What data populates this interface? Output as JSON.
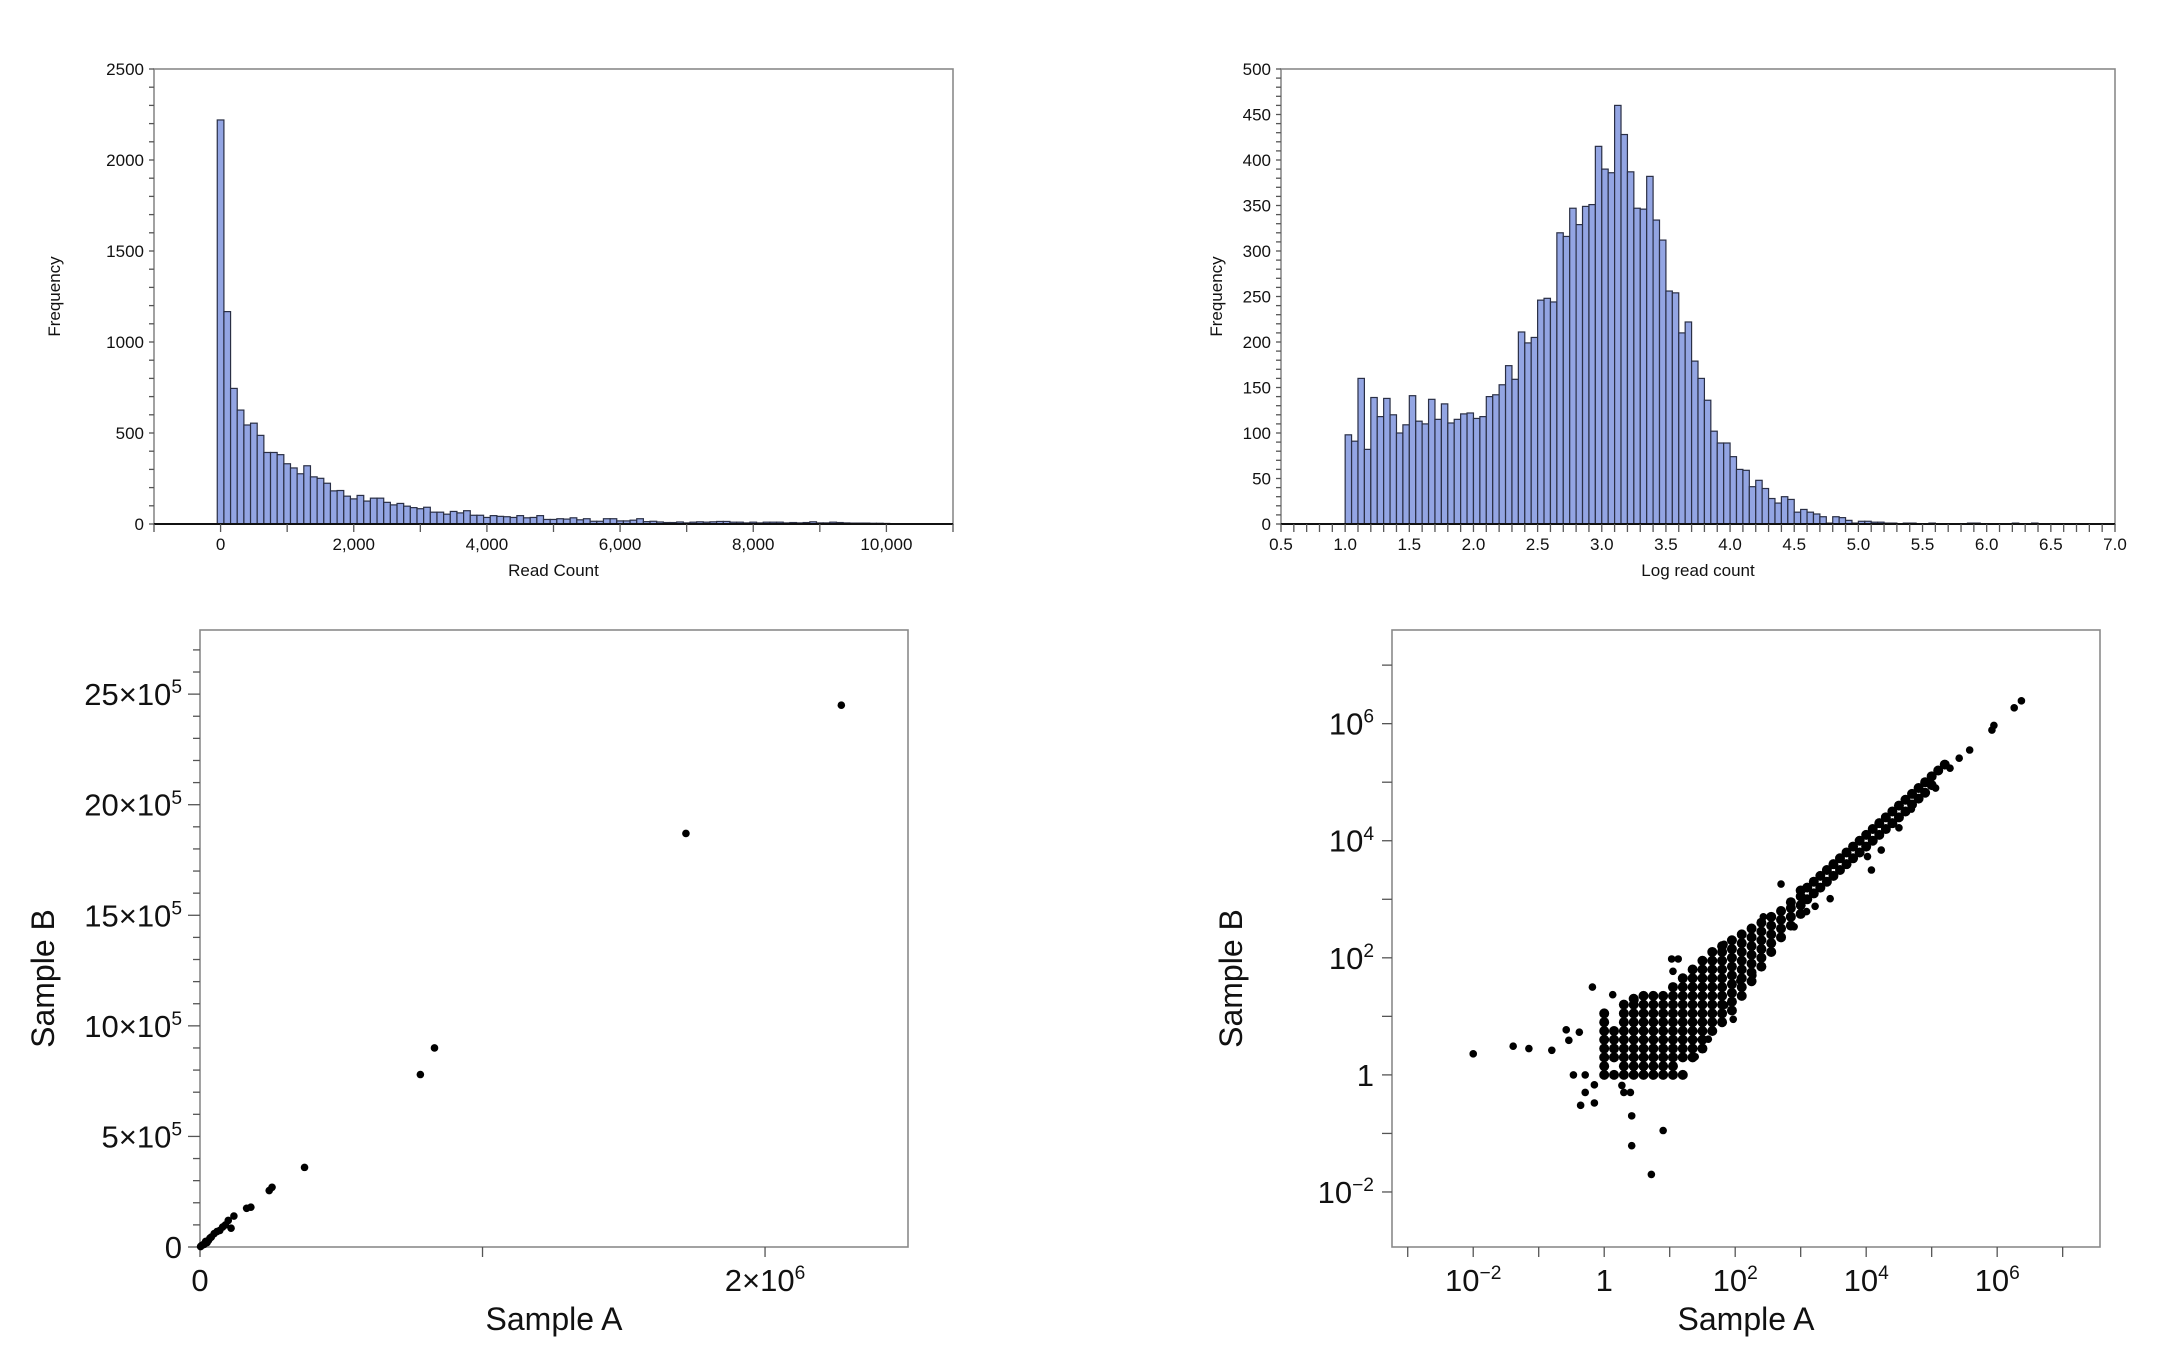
{
  "chart_data": [
    {
      "type": "bar",
      "subtype": "histogram",
      "xlabel": "Read Count",
      "ylabel": "Frequency",
      "xlim": [
        -1000,
        11000
      ],
      "ylim": [
        0,
        2500
      ],
      "bin_start": -50,
      "bin_width": 100,
      "values": [
        2220,
        1167,
        745,
        626,
        544,
        554,
        487,
        393,
        393,
        381,
        331,
        308,
        276,
        320,
        259,
        251,
        224,
        182,
        184,
        153,
        138,
        157,
        126,
        142,
        142,
        119,
        105,
        113,
        98,
        90,
        84,
        92,
        65,
        65,
        54,
        69,
        61,
        73,
        48,
        48,
        36,
        46,
        42,
        40,
        36,
        46,
        34,
        36,
        46,
        25,
        25,
        29,
        27,
        34,
        23,
        29,
        15,
        15,
        29,
        29,
        17,
        17,
        21,
        29,
        13,
        15,
        11,
        8,
        8,
        11,
        6,
        10,
        12,
        10,
        12,
        14,
        14,
        10,
        10,
        6,
        10,
        6,
        10,
        10,
        10,
        6,
        8,
        6,
        8,
        12,
        6,
        6,
        10,
        8,
        6,
        5,
        5,
        5,
        4,
        4,
        3
      ],
      "x_ticks": {
        "values": [
          0,
          2000,
          4000,
          6000,
          8000,
          10000
        ],
        "labels": [
          "0",
          "2,000",
          "4,000",
          "6,000",
          "8,000",
          "10,000"
        ],
        "minor_step": 1000
      },
      "y_ticks": {
        "values": [
          0,
          500,
          1000,
          1500,
          2000,
          2500
        ],
        "labels": [
          "0",
          "500",
          "1000",
          "1500",
          "2000",
          "2500"
        ],
        "minor_step": 100
      },
      "fill": "#93a5e3",
      "grid": false
    },
    {
      "type": "bar",
      "subtype": "histogram",
      "xlabel": "Log read count",
      "ylabel": "Frequency",
      "xlim": [
        0.5,
        7.0
      ],
      "ylim": [
        0,
        500
      ],
      "bin_start": 1.0,
      "bin_width": 0.05,
      "values": [
        98,
        91,
        160,
        82,
        139,
        118,
        138,
        120,
        100,
        109,
        141,
        113,
        110,
        137,
        115,
        132,
        111,
        115,
        121,
        122,
        116,
        118,
        140,
        142,
        153,
        174,
        159,
        211,
        199,
        205,
        246,
        248,
        244,
        320,
        316,
        347,
        329,
        349,
        351,
        415,
        390,
        386,
        460,
        428,
        387,
        347,
        346,
        382,
        334,
        312,
        256,
        254,
        210,
        222,
        179,
        160,
        136,
        102,
        89,
        89,
        74,
        60,
        59,
        41,
        48,
        39,
        28,
        23,
        30,
        27,
        13,
        16,
        13,
        11,
        8,
        1,
        8,
        7,
        4,
        1,
        3,
        3,
        2,
        2,
        1,
        1,
        0,
        1,
        1,
        0,
        0,
        1,
        0,
        0,
        0,
        0,
        0,
        1,
        1,
        0,
        0,
        0,
        0,
        0,
        1,
        0,
        0,
        1
      ],
      "x_ticks": {
        "values": [
          0.5,
          1.0,
          1.5,
          2.0,
          2.5,
          3.0,
          3.5,
          4.0,
          4.5,
          5.0,
          5.5,
          6.0,
          6.5,
          7.0
        ],
        "labels": [
          "0.5",
          "1.0",
          "1.5",
          "2.0",
          "2.5",
          "3.0",
          "3.5",
          "4.0",
          "4.5",
          "5.0",
          "5.5",
          "6.0",
          "6.5",
          "7.0"
        ],
        "minor_step": 0.1
      },
      "y_ticks": {
        "values": [
          0,
          50,
          100,
          150,
          200,
          250,
          300,
          350,
          400,
          450,
          500
        ],
        "labels": [
          "0",
          "50",
          "100",
          "150",
          "200",
          "250",
          "300",
          "350",
          "400",
          "450",
          "500"
        ],
        "minor_step": 10
      },
      "fill": "#93a5e3",
      "grid": false
    },
    {
      "type": "scatter",
      "xlabel": "Sample A",
      "ylabel": "Sample B",
      "xscale": "linear",
      "yscale": "linear",
      "xlim": [
        0,
        2506000
      ],
      "ylim": [
        0,
        2790000
      ],
      "points": [
        [
          2270000,
          2450000
        ],
        [
          1720000,
          1870000
        ],
        [
          830000,
          900000
        ],
        [
          780000,
          780000
        ],
        [
          370000,
          360000
        ],
        [
          255000,
          270000
        ],
        [
          245000,
          255000
        ],
        [
          180000,
          180000
        ],
        [
          165000,
          175000
        ],
        [
          120000,
          140000
        ],
        [
          110000,
          85000
        ],
        [
          100000,
          120000
        ],
        [
          90000,
          100000
        ],
        [
          80000,
          90000
        ],
        [
          70000,
          75000
        ],
        [
          60000,
          70000
        ],
        [
          50000,
          60000
        ],
        [
          40000,
          45000
        ],
        [
          35000,
          40000
        ],
        [
          30000,
          30000
        ],
        [
          25000,
          20000
        ],
        [
          20000,
          25000
        ],
        [
          15000,
          12000
        ],
        [
          10000,
          10000
        ],
        [
          5000,
          6000
        ],
        [
          2000,
          2000
        ]
      ],
      "x_ticks": {
        "values": [
          0,
          1000000,
          2000000
        ],
        "labels": [
          {
            "base": "0",
            "exp": ""
          },
          {
            "base": "",
            "exp": ""
          },
          {
            "base": "2×10",
            "exp": "6"
          }
        ]
      },
      "y_ticks": {
        "values": [
          0,
          500000,
          1000000,
          1500000,
          2000000,
          2500000
        ],
        "labels": [
          {
            "base": "0",
            "exp": ""
          },
          {
            "base": "5×10",
            "exp": "5"
          },
          {
            "base": "10×10",
            "exp": "5"
          },
          {
            "base": "15×10",
            "exp": "5"
          },
          {
            "base": "20×10",
            "exp": "5"
          },
          {
            "base": "25×10",
            "exp": "5"
          }
        ],
        "minor_step": 100000
      },
      "grid": false
    },
    {
      "type": "scatter",
      "xlabel": "Sample A",
      "ylabel": "Sample B",
      "xscale": "log10",
      "yscale": "log10",
      "log10_xlim": [
        -3.24,
        7.57
      ],
      "log10_ylim": [
        -2.94,
        7.6
      ],
      "log10_point_columns": [
        {
          "x": 0.0,
          "y": [
            0,
            0.15,
            0.3,
            0.45,
            0.6,
            0.75,
            0.9,
            1.05
          ]
        },
        {
          "x": 0.15,
          "y": [
            0,
            0.3,
            0.45,
            0.6,
            0.75
          ]
        },
        {
          "x": 0.3,
          "y": [
            0,
            0.15,
            0.3,
            0.45,
            0.6,
            0.75,
            0.9,
            1.05,
            1.2
          ]
        },
        {
          "x": 0.45,
          "y": [
            0,
            0.15,
            0.3,
            0.45,
            0.6,
            0.75,
            0.9,
            1.05,
            1.2,
            1.3
          ]
        },
        {
          "x": 0.6,
          "y": [
            0,
            0.15,
            0.3,
            0.45,
            0.6,
            0.75,
            0.9,
            1.05,
            1.2,
            1.35
          ]
        },
        {
          "x": 0.75,
          "y": [
            0,
            0.15,
            0.3,
            0.45,
            0.6,
            0.75,
            0.9,
            1.05,
            1.2,
            1.35
          ]
        },
        {
          "x": 0.9,
          "y": [
            0,
            0.15,
            0.3,
            0.45,
            0.6,
            0.75,
            0.9,
            1.05,
            1.2,
            1.35
          ]
        },
        {
          "x": 1.05,
          "y": [
            0,
            0.15,
            0.3,
            0.45,
            0.6,
            0.75,
            0.9,
            1.05,
            1.2,
            1.35,
            1.5
          ]
        },
        {
          "x": 1.2,
          "y": [
            0,
            0.3,
            0.45,
            0.6,
            0.75,
            0.9,
            1.05,
            1.2,
            1.35,
            1.5,
            1.65
          ]
        },
        {
          "x": 1.35,
          "y": [
            0.3,
            0.45,
            0.6,
            0.75,
            0.9,
            1.05,
            1.2,
            1.35,
            1.5,
            1.65,
            1.8
          ]
        },
        {
          "x": 1.5,
          "y": [
            0.45,
            0.6,
            0.75,
            0.9,
            1.05,
            1.2,
            1.35,
            1.5,
            1.65,
            1.8,
            1.95
          ]
        },
        {
          "x": 1.65,
          "y": [
            0.75,
            0.9,
            1.05,
            1.2,
            1.35,
            1.5,
            1.65,
            1.8,
            1.95,
            2.1
          ]
        },
        {
          "x": 1.8,
          "y": [
            0.9,
            1.05,
            1.2,
            1.35,
            1.5,
            1.65,
            1.8,
            1.95,
            2.1,
            2.2
          ]
        },
        {
          "x": 1.95,
          "y": [
            1.1,
            1.25,
            1.4,
            1.55,
            1.7,
            1.85,
            2.0,
            2.15,
            2.3
          ]
        },
        {
          "x": 2.1,
          "y": [
            1.35,
            1.5,
            1.65,
            1.8,
            1.95,
            2.1,
            2.25,
            2.4
          ]
        },
        {
          "x": 2.25,
          "y": [
            1.6,
            1.75,
            1.9,
            2.05,
            2.2,
            2.35,
            2.5
          ]
        },
        {
          "x": 2.4,
          "y": [
            1.85,
            2.0,
            2.15,
            2.3,
            2.45,
            2.6
          ]
        },
        {
          "x": 2.55,
          "y": [
            2.1,
            2.25,
            2.4,
            2.55,
            2.7
          ]
        },
        {
          "x": 2.7,
          "y": [
            2.35,
            2.5,
            2.65,
            2.8
          ]
        },
        {
          "x": 2.85,
          "y": [
            2.55,
            2.7,
            2.85,
            2.95
          ]
        },
        {
          "x": 3.0,
          "y": [
            2.75,
            2.9,
            3.05,
            3.15
          ]
        },
        {
          "x": 3.1,
          "y": [
            3.0,
            3.2
          ]
        },
        {
          "x": 3.2,
          "y": [
            3.1,
            3.3
          ]
        },
        {
          "x": 3.3,
          "y": [
            3.2,
            3.4
          ]
        },
        {
          "x": 3.4,
          "y": [
            3.3,
            3.5
          ]
        },
        {
          "x": 3.5,
          "y": [
            3.4,
            3.6
          ]
        },
        {
          "x": 3.6,
          "y": [
            3.5,
            3.7
          ]
        },
        {
          "x": 3.7,
          "y": [
            3.6,
            3.8
          ]
        },
        {
          "x": 3.8,
          "y": [
            3.7,
            3.9
          ]
        },
        {
          "x": 3.9,
          "y": [
            3.8,
            4.0
          ]
        },
        {
          "x": 4.0,
          "y": [
            3.9,
            4.1
          ]
        },
        {
          "x": 4.1,
          "y": [
            4.0,
            4.2
          ]
        },
        {
          "x": 4.2,
          "y": [
            4.1,
            4.3
          ]
        },
        {
          "x": 4.3,
          "y": [
            4.2,
            4.4
          ]
        },
        {
          "x": 4.4,
          "y": [
            4.3,
            4.5
          ]
        },
        {
          "x": 4.5,
          "y": [
            4.4,
            4.6
          ]
        },
        {
          "x": 4.6,
          "y": [
            4.5,
            4.7
          ]
        },
        {
          "x": 4.7,
          "y": [
            4.62,
            4.8
          ]
        },
        {
          "x": 4.8,
          "y": [
            4.72,
            4.9
          ]
        },
        {
          "x": 4.9,
          "y": [
            4.82,
            5.0
          ]
        },
        {
          "x": 5.0,
          "y": [
            4.95,
            5.1
          ]
        },
        {
          "x": 5.1,
          "y": [
            5.2
          ]
        },
        {
          "x": 5.2,
          "y": [
            5.3
          ]
        }
      ],
      "log10_outliers": [
        [
          -2,
          0.36
        ],
        [
          -1.39,
          0.49
        ],
        [
          -1.15,
          0.45
        ],
        [
          -0.8,
          0.42
        ],
        [
          -0.58,
          0.77
        ],
        [
          -0.54,
          0.59
        ],
        [
          -0.38,
          0.73
        ],
        [
          -0.18,
          1.5
        ],
        [
          -0.47,
          0
        ],
        [
          -0.29,
          0
        ],
        [
          -0.15,
          -0.17
        ],
        [
          -0.29,
          -0.3
        ],
        [
          -0.36,
          -0.52
        ],
        [
          -0.15,
          -0.48
        ],
        [
          0.27,
          -0.18
        ],
        [
          0.3,
          -0.3
        ],
        [
          0.4,
          -0.3
        ],
        [
          0.42,
          -0.7
        ],
        [
          0.9,
          -0.95
        ],
        [
          0.42,
          -1.21
        ],
        [
          0.72,
          -1.7
        ],
        [
          0.13,
          1.37
        ],
        [
          0.47,
          1.28
        ],
        [
          1.03,
          1.98
        ],
        [
          1.13,
          1.98
        ],
        [
          1.05,
          1.77
        ],
        [
          1.83,
          2.23
        ],
        [
          1.97,
          0.95
        ],
        [
          2.7,
          3.26
        ],
        [
          2.43,
          2.7
        ],
        [
          4.08,
          3.5
        ],
        [
          4.23,
          3.84
        ],
        [
          4.02,
          3.73
        ],
        [
          4.5,
          4.22
        ],
        [
          4.69,
          4.54
        ],
        [
          5.06,
          4.9
        ],
        [
          3.45,
          3.01
        ],
        [
          3.22,
          2.88
        ],
        [
          3.09,
          2.79
        ],
        [
          2.9,
          2.53
        ],
        [
          2.27,
          1.7
        ],
        [
          2.07,
          1.61
        ],
        [
          1.84,
          1.19
        ],
        [
          1.59,
          0.61
        ],
        [
          1.39,
          0.31
        ],
        [
          6.37,
          6.39
        ],
        [
          6.26,
          6.27
        ],
        [
          5.95,
          5.97
        ],
        [
          5.92,
          5.89
        ],
        [
          5.58,
          5.55
        ],
        [
          5.42,
          5.41
        ],
        [
          5.28,
          5.24
        ]
      ],
      "x_ticks": {
        "log10_values": [
          -3,
          -2,
          -1,
          0,
          1,
          2,
          3,
          4,
          5,
          6,
          7
        ],
        "labels": [
          {
            "base": "",
            "exp": ""
          },
          {
            "base": "10",
            "exp": "−2"
          },
          {
            "base": "",
            "exp": ""
          },
          {
            "base": "1",
            "exp": ""
          },
          {
            "base": "",
            "exp": ""
          },
          {
            "base": "10",
            "exp": "2"
          },
          {
            "base": "",
            "exp": ""
          },
          {
            "base": "10",
            "exp": "4"
          },
          {
            "base": "",
            "exp": ""
          },
          {
            "base": "10",
            "exp": "6"
          },
          {
            "base": "",
            "exp": ""
          }
        ]
      },
      "y_ticks": {
        "log10_values": [
          -2,
          -1,
          0,
          1,
          2,
          3,
          4,
          5,
          6,
          7
        ],
        "labels": [
          {
            "base": "10",
            "exp": "−2"
          },
          {
            "base": "",
            "exp": ""
          },
          {
            "base": "1",
            "exp": ""
          },
          {
            "base": "",
            "exp": ""
          },
          {
            "base": "10",
            "exp": "2"
          },
          {
            "base": "",
            "exp": ""
          },
          {
            "base": "10",
            "exp": "4"
          },
          {
            "base": "",
            "exp": ""
          },
          {
            "base": "10",
            "exp": "6"
          },
          {
            "base": "",
            "exp": ""
          }
        ]
      },
      "grid": false
    }
  ]
}
